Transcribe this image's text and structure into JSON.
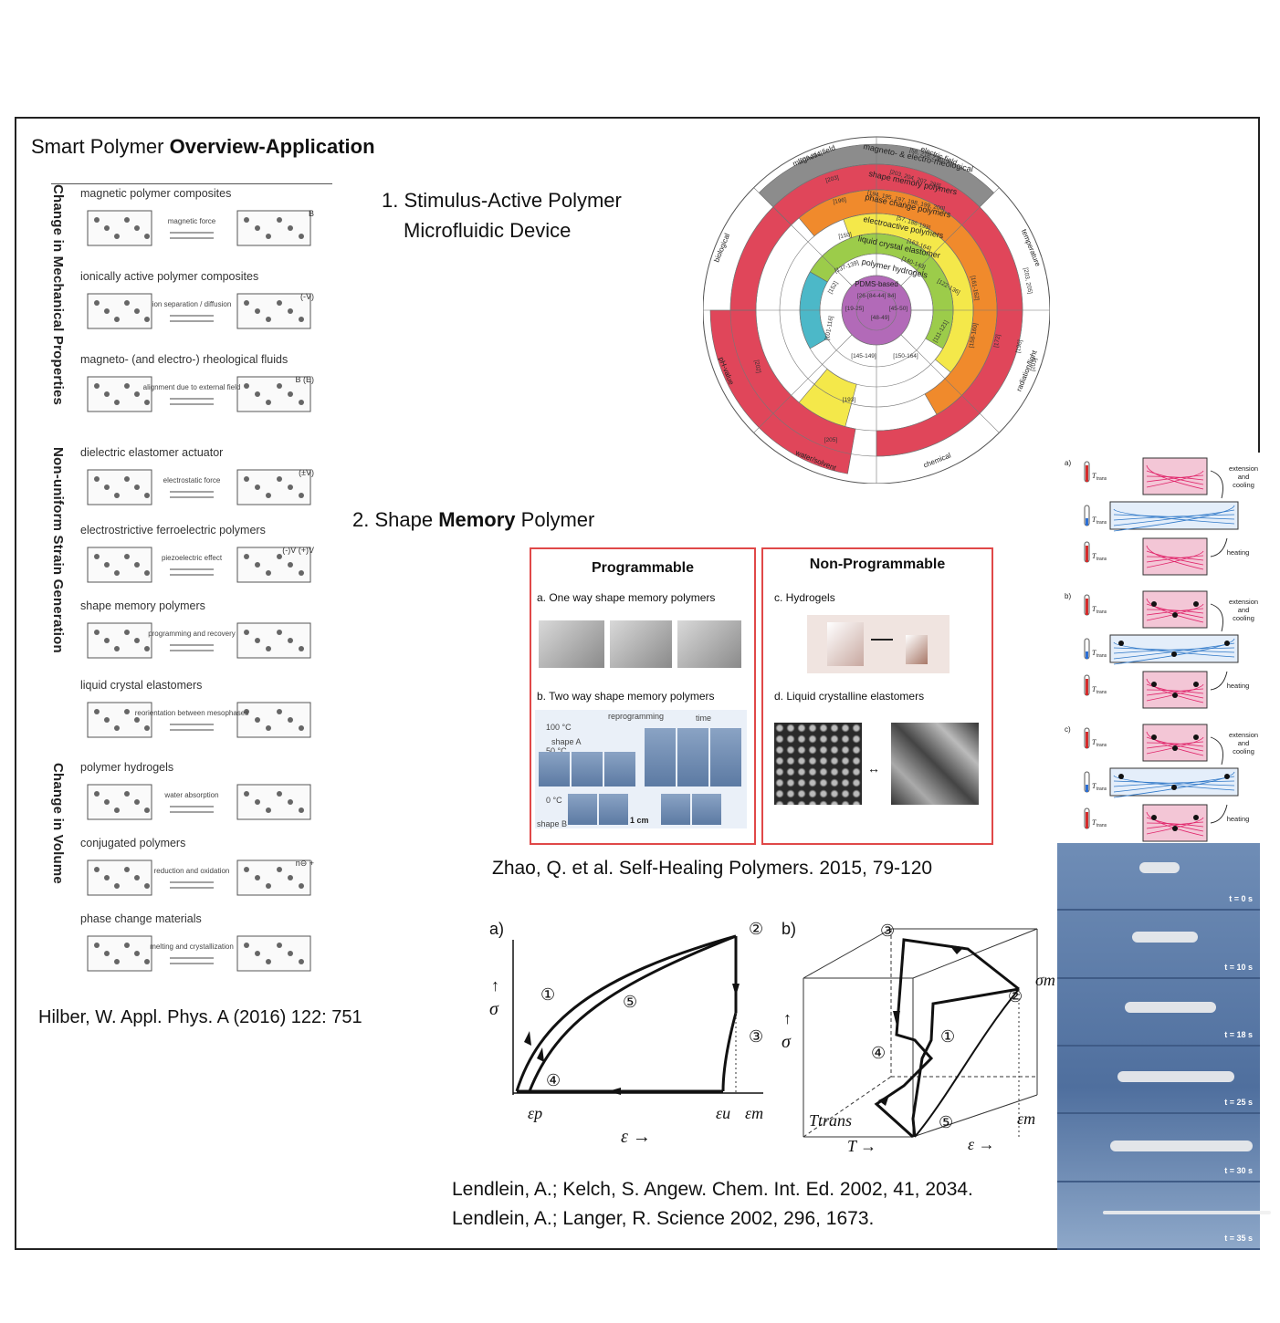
{
  "title": {
    "prefix": "Smart Polymer ",
    "bold": "Overview-Application"
  },
  "section1": {
    "line1": "1. Stimulus-Active Polymer",
    "line2": "Microfluidic Device"
  },
  "section2": {
    "prefix": "2. Shape ",
    "bold": "Memory",
    "suffix": " Polymer"
  },
  "left_panel": {
    "group_labels": [
      "Change in Mechanical Properties",
      "Non-uniform Strain Generation",
      "Change in Volume"
    ],
    "items": [
      {
        "name": "magnetic polymer composites",
        "arrow": "magnetic force",
        "extra": "B"
      },
      {
        "name": "ionically active polymer composites",
        "arrow": "ion separation / diffusion",
        "extra": "(-V)"
      },
      {
        "name": "magneto- (and electro-) rheological fluids",
        "arrow": "alignment due to external field",
        "extra": "B (E)"
      },
      {
        "name": "dielectric elastomer actuator",
        "arrow": "electrostatic force",
        "extra": "(±V)"
      },
      {
        "name": "electrostrictive ferroelectric polymers",
        "arrow": "piezoelectric effect",
        "extra": "(-)V   (+)V"
      },
      {
        "name": "shape memory polymers",
        "arrow": "programming and recovery",
        "extra": ""
      },
      {
        "name": "liquid crystal elastomers",
        "arrow": "reorientation between mesophases",
        "extra": ""
      },
      {
        "name": "polymer hydrogels",
        "arrow": "water absorption",
        "extra": ""
      },
      {
        "name": "conjugated polymers",
        "arrow": "reduction and oxidation",
        "extra": "n⊖ +"
      },
      {
        "name": "phase change materials",
        "arrow": "melting and crystallization",
        "extra": ""
      }
    ],
    "citation": "Hilber, W. Appl. Phys. A (2016) 122: 751"
  },
  "wheel": {
    "outer_labels": [
      "magnetic field",
      "electric field",
      "temperature",
      "radiation/light",
      "chemical",
      "water/solvent",
      "pH-value",
      "biological"
    ],
    "rings": [
      {
        "name": "magneto- & electro-rheological",
        "color": "#8c8c8c"
      },
      {
        "name": "shape memory polymers",
        "color": "#e0465a"
      },
      {
        "name": "phase change polymers",
        "color": "#f08a2c"
      },
      {
        "name": "electroactive polymers",
        "color": "#f4e84a"
      },
      {
        "name": "liquid crystal elastomer",
        "color": "#9ccc4a"
      },
      {
        "name": "polymer hydrogels",
        "color": "#4cb8c8"
      },
      {
        "name": "PDMS-based",
        "color": "#b26ab8"
      }
    ],
    "refs": [
      "[209-214]",
      "[58, 218-226]",
      "[203]",
      "[203, 204, 207, 208]",
      "[196]",
      "[194, 195, 197, 198, 199, 200]",
      "[150]",
      "[57, 186-193]",
      "[163-164]",
      "[137-139]",
      "[140-143]",
      "[122-136]",
      "[26-[84-44] 84]",
      "[19-25]",
      "[45-50]",
      "[48-49]",
      "[101-116]",
      "[145-149]",
      "[150-164]",
      "[111-121]",
      "[158-160]",
      "[172]",
      "[196]",
      "[201]",
      "[202]",
      "[203, 205]",
      "[161-162]",
      "[193]",
      "[205]",
      "[152]"
    ]
  },
  "smp_panel": {
    "programmable": {
      "title": "Programmable",
      "a": "a. One way shape memory polymers",
      "b": "b. Two way shape memory polymers",
      "labels": [
        "reprogramming",
        "time",
        "shape A",
        "shape B",
        "1 cm",
        "100 °C",
        "50 °C",
        "0 °C"
      ]
    },
    "non_programmable": {
      "title": "Non-Programmable",
      "c": "c. Hydrogels",
      "d": "d. Liquid crystalline elastomers"
    },
    "citation": "Zhao, Q. et al. Self-Healing Polymers. 2015, 79-120"
  },
  "right_schematic": {
    "rows": [
      {
        "tag": "a)",
        "labels": [
          "extension and cooling",
          "heating"
        ]
      },
      {
        "tag": "b)",
        "labels": [
          "extension and cooling",
          "heating"
        ]
      },
      {
        "tag": "c)",
        "labels": [
          "extension and cooling",
          "heating"
        ]
      }
    ],
    "temp_label": "T",
    "temp_sub": "trans"
  },
  "cycle_diagram": {
    "a": {
      "tag": "a)",
      "ylabel": "σ",
      "xlabel": "ε →",
      "ticks": [
        "εp",
        "εu",
        "εm"
      ],
      "steps": [
        "①",
        "②",
        "③",
        "④",
        "⑤"
      ]
    },
    "b": {
      "tag": "b)",
      "ylabel": "σ",
      "labels": [
        "σm",
        "εm",
        "Ttrans",
        "T →",
        "ε →"
      ],
      "steps": [
        "①",
        "②",
        "③",
        "④",
        "⑤"
      ]
    }
  },
  "photo_strip": {
    "times": [
      "t = 0 s",
      "t = 10 s",
      "t = 18 s",
      "t = 25 s",
      "t = 30 s",
      "t = 35 s"
    ]
  },
  "citations_bottom": [
    "Lendlein, A.; Kelch, S. Angew. Chem. Int. Ed. 2002, 41, 2034.",
    "Lendlein, A.; Langer, R. Science 2002, 296, 1673."
  ]
}
